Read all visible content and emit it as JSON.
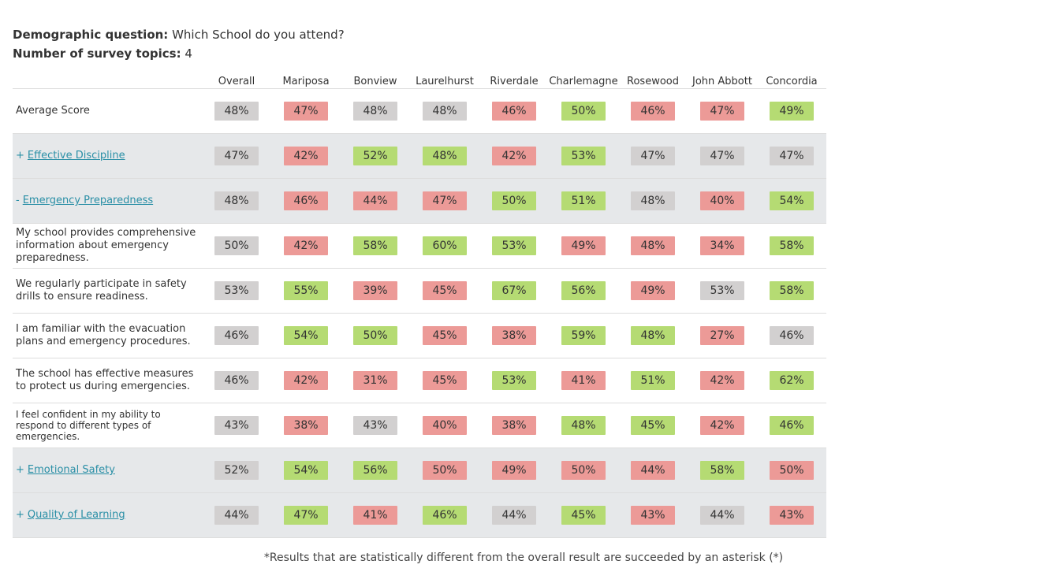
{
  "meta": {
    "demographic_label": "Demographic question:",
    "demographic_value": "Which School do you attend?",
    "topics_label": "Number of survey topics:",
    "topics_value": "4"
  },
  "columns": [
    "Overall",
    "Mariposa",
    "Bonview",
    "Laurelhurst",
    "Riverdale",
    "Charlemagne",
    "Rosewood",
    "John Abbott",
    "Concordia"
  ],
  "colors": {
    "green": "#b5db73",
    "red": "#ec9a97",
    "gray": "#d2d0d0",
    "topic_bg": "#e6e8ea",
    "link": "#2a8fa6"
  },
  "rows": [
    {
      "type": "average",
      "label": "Average Score",
      "values": [
        "48%",
        "47%",
        "48%",
        "48%",
        "46%",
        "50%",
        "46%",
        "47%",
        "49%"
      ],
      "tones": [
        "gray",
        "red",
        "gray",
        "gray",
        "red",
        "green",
        "red",
        "red",
        "green"
      ]
    },
    {
      "type": "topic",
      "toggle": "+",
      "label": "Effective Discipline",
      "values": [
        "47%",
        "42%",
        "52%",
        "48%",
        "42%",
        "53%",
        "47%",
        "47%",
        "47%"
      ],
      "tones": [
        "gray",
        "red",
        "green",
        "green",
        "red",
        "green",
        "gray",
        "gray",
        "gray"
      ]
    },
    {
      "type": "topic",
      "toggle": "-",
      "label": "Emergency Preparedness",
      "values": [
        "48%",
        "46%",
        "44%",
        "47%",
        "50%",
        "51%",
        "48%",
        "40%",
        "54%"
      ],
      "tones": [
        "gray",
        "red",
        "red",
        "red",
        "green",
        "green",
        "gray",
        "red",
        "green"
      ]
    },
    {
      "type": "question",
      "label": "My school provides comprehensive information about emergency preparedness.",
      "values": [
        "50%",
        "42%",
        "58%",
        "60%",
        "53%",
        "49%",
        "48%",
        "34%",
        "58%"
      ],
      "tones": [
        "gray",
        "red",
        "green",
        "green",
        "green",
        "red",
        "red",
        "red",
        "green"
      ]
    },
    {
      "type": "question",
      "label": "We regularly participate in safety drills to ensure readiness.",
      "values": [
        "53%",
        "55%",
        "39%",
        "45%",
        "67%",
        "56%",
        "49%",
        "53%",
        "58%"
      ],
      "tones": [
        "gray",
        "green",
        "red",
        "red",
        "green",
        "green",
        "red",
        "gray",
        "green"
      ]
    },
    {
      "type": "question",
      "label": "I am familiar with the evacuation plans and emergency procedures.",
      "values": [
        "46%",
        "54%",
        "50%",
        "45%",
        "38%",
        "59%",
        "48%",
        "27%",
        "46%"
      ],
      "tones": [
        "gray",
        "green",
        "green",
        "red",
        "red",
        "green",
        "green",
        "red",
        "gray"
      ]
    },
    {
      "type": "question",
      "label": "The school has effective measures to protect us during emergencies.",
      "values": [
        "46%",
        "42%",
        "31%",
        "45%",
        "53%",
        "41%",
        "51%",
        "42%",
        "62%"
      ],
      "tones": [
        "gray",
        "red",
        "red",
        "red",
        "green",
        "red",
        "green",
        "red",
        "green"
      ]
    },
    {
      "type": "question",
      "small": true,
      "label": "I feel confident in my ability to respond to different types of emergencies.",
      "values": [
        "43%",
        "38%",
        "43%",
        "40%",
        "38%",
        "48%",
        "45%",
        "42%",
        "46%"
      ],
      "tones": [
        "gray",
        "red",
        "gray",
        "red",
        "red",
        "green",
        "green",
        "red",
        "green"
      ]
    },
    {
      "type": "topic",
      "toggle": "+",
      "label": "Emotional Safety",
      "values": [
        "52%",
        "54%",
        "56%",
        "50%",
        "49%",
        "50%",
        "44%",
        "58%",
        "50%"
      ],
      "tones": [
        "gray",
        "green",
        "green",
        "red",
        "red",
        "red",
        "red",
        "green",
        "red"
      ]
    },
    {
      "type": "topic",
      "toggle": "+",
      "label": "Quality of Learning",
      "values": [
        "44%",
        "47%",
        "41%",
        "46%",
        "44%",
        "45%",
        "43%",
        "44%",
        "43%"
      ],
      "tones": [
        "gray",
        "green",
        "red",
        "green",
        "gray",
        "green",
        "red",
        "gray",
        "red"
      ]
    }
  ],
  "footnote": "*Results that are statistically different from the overall result are succeeded by an asterisk (*)"
}
